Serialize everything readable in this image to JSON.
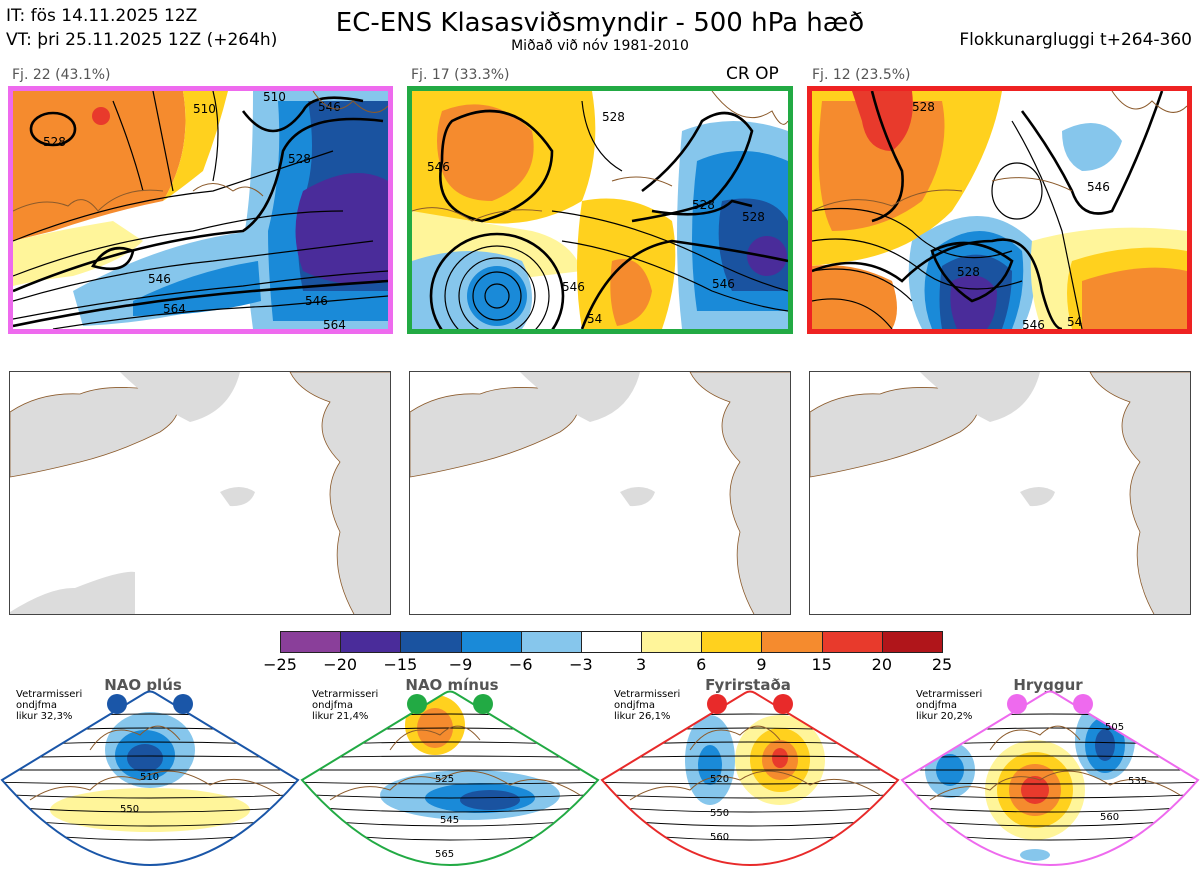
{
  "header": {
    "it_line": "IT: fös 14.11.2025 12Z",
    "vt_line": "VT: þri 25.11.2025 12Z  (+264h)",
    "title": "EC-ENS Klasasviðsmyndir - 500 hPa hæð",
    "subtitle": "Miðað við nóv 1981-2010",
    "window": "Flokkunargluggi t+264-360"
  },
  "clusters": [
    {
      "label": "Fj. 22 (43.1%)",
      "border_color": "#ee6aee",
      "contours": [
        "528",
        "510",
        "546",
        "528",
        "546",
        "564",
        "546",
        "564",
        "510"
      ]
    },
    {
      "label": "Fj. 17 (33.3%)",
      "border_color": "#22aa44",
      "marker": "CR OP",
      "contours": [
        "546",
        "528",
        "528",
        "546",
        "546",
        "54",
        "528"
      ]
    },
    {
      "label": "Fj. 12 (23.5%)",
      "border_color": "#ee2222",
      "contours": [
        "528",
        "546",
        "528",
        "546",
        "54"
      ]
    }
  ],
  "colorbar": {
    "ticks": [
      "−25",
      "−20",
      "−15",
      "−9",
      "−6",
      "−3",
      "3",
      "6",
      "9",
      "15",
      "20",
      "25"
    ],
    "colors": [
      "#8a3f9a",
      "#4a2c9a",
      "#1a53a0",
      "#1a8ad8",
      "#86c6ec",
      "#ffffff",
      "#fff59a",
      "#ffd11e",
      "#f58b2e",
      "#e83a2c",
      "#b0151a"
    ]
  },
  "regimes": [
    {
      "title": "NAO plús",
      "info": [
        "Vetrarmisseri",
        "ondjfma",
        "likur 32,3%"
      ],
      "color": "#1a56a8",
      "contours": [
        "510",
        "550"
      ]
    },
    {
      "title": "NAO mínus",
      "info": [
        "Vetrarmisseri",
        "ondjfma",
        "likur 21,4%"
      ],
      "color": "#22aa44",
      "contours": [
        "525",
        "545",
        "565"
      ]
    },
    {
      "title": "Fyrirstaða",
      "info": [
        "Vetrarmisseri",
        "ondjfma",
        "likur 26,1%"
      ],
      "color": "#e82a2a",
      "contours": [
        "520",
        "550",
        "560"
      ]
    },
    {
      "title": "Hryggur",
      "info": [
        "Vetrarmisseri",
        "ondjfma",
        "likur 20,2%"
      ],
      "color": "#ee6aee",
      "contours": [
        "505",
        "535",
        "560"
      ]
    }
  ]
}
